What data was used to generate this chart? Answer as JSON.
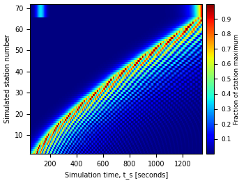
{
  "xlabel": "Simulation time, t_s [seconds]",
  "ylabel": "Simulated station number",
  "colorbar_label": "Fraction of station maximum",
  "xlim": [
    50,
    1350
  ],
  "ylim": [
    1,
    72
  ],
  "xticks": [
    200,
    400,
    600,
    800,
    1000,
    1200
  ],
  "yticks": [
    10,
    20,
    30,
    40,
    50,
    60,
    70
  ],
  "colorbar_ticks": [
    0.1,
    0.2,
    0.3,
    0.4,
    0.5,
    0.6,
    0.7,
    0.8,
    0.9
  ],
  "n_stations": 72,
  "t_start": 50,
  "t_end": 1350,
  "n_time": 800,
  "cmap": "jet",
  "figsize": [
    3.53,
    2.63
  ],
  "dpi": 100
}
